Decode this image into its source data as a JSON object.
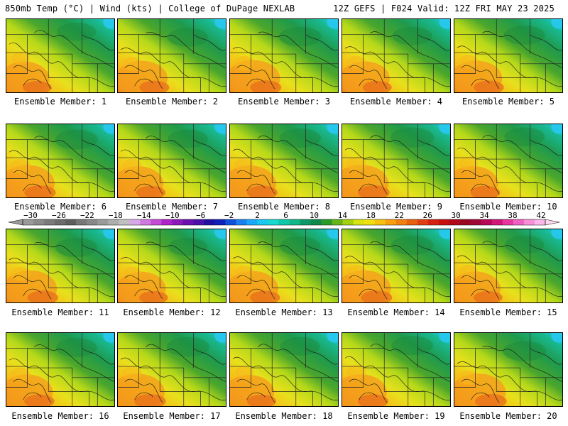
{
  "header": {
    "left": "850mb Temp (°C) | Wind (kts) | College of DuPage NEXLAB",
    "right": "12Z GEFS | F024 Valid: 12Z FRI MAY 23 2025"
  },
  "panel_label_prefix": "Ensemble Member: ",
  "members": [
    "1",
    "2",
    "3",
    "4",
    "5",
    "6",
    "7",
    "8",
    "9",
    "10",
    "11",
    "12",
    "13",
    "14",
    "15",
    "16",
    "17",
    "18",
    "19",
    "20"
  ],
  "colorbar": {
    "tick_labels": [
      "-30",
      "-26",
      "-22",
      "-18",
      "-14",
      "-10",
      "-6",
      "-2",
      "2",
      "6",
      "10",
      "14",
      "18",
      "22",
      "26",
      "30",
      "34",
      "38",
      "42"
    ],
    "colors": [
      "#9a9a9a",
      "#8a8a8a",
      "#7b7b7b",
      "#6c6c6c",
      "#5e5e5e",
      "#777777",
      "#888888",
      "#9a9a9a",
      "#adadad",
      "#c0c0c0",
      "#d8a8e6",
      "#d07ae0",
      "#c74bd8",
      "#b021c8",
      "#8a1ab8",
      "#6a10b0",
      "#4a10a8",
      "#2010a0",
      "#1020b8",
      "#1050d8",
      "#1a80f0",
      "#1aa8f8",
      "#18c8f0",
      "#18d8d0",
      "#10c8a8",
      "#10b888",
      "#109868",
      "#10884a",
      "#2a9a2a",
      "#66b41a",
      "#a4d010",
      "#d8e410",
      "#f0e010",
      "#f8c010",
      "#f8a010",
      "#f08010",
      "#e86010",
      "#e04010",
      "#d82010",
      "#c81010",
      "#b00818",
      "#980820",
      "#a00838",
      "#b80858",
      "#d01878",
      "#e838a0",
      "#f060c0",
      "#f890d8",
      "#fab8e8"
    ]
  }
}
